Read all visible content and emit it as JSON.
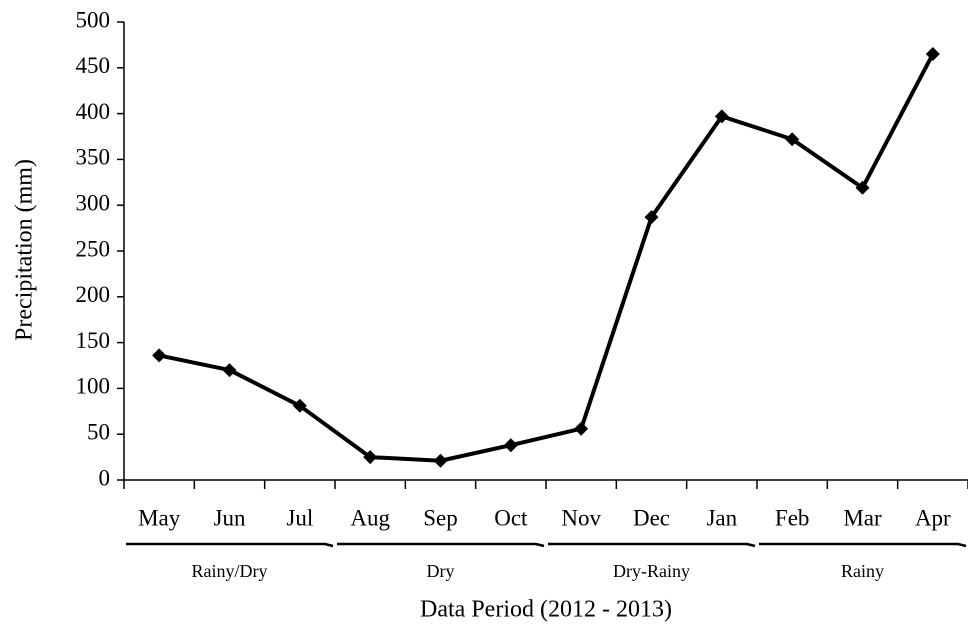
{
  "chart_data": {
    "type": "line",
    "categories": [
      "May",
      "Jun",
      "Jul",
      "Aug",
      "Sep",
      "Oct",
      "Nov",
      "Dec",
      "Jan",
      "Feb",
      "Mar",
      "Apr"
    ],
    "values": [
      136,
      120,
      81,
      25,
      21,
      38,
      56,
      287,
      397,
      372,
      319,
      465
    ],
    "color": "#000000",
    "ylim": [
      0,
      500
    ],
    "yticks": [
      0,
      50,
      100,
      150,
      200,
      250,
      300,
      350,
      400,
      450,
      500
    ],
    "y_label": "Precipitation (mm)",
    "x_label": "Data Period (2012 - 2013)",
    "groups": [
      {
        "label": "Rainy/Dry",
        "members": [
          "May",
          "Jun",
          "Jul"
        ]
      },
      {
        "label": "Dry",
        "members": [
          "Aug",
          "Sep",
          "Oct"
        ]
      },
      {
        "label": "Dry-Rainy",
        "members": [
          "Nov",
          "Dec",
          "Jan"
        ]
      },
      {
        "label": "Rainy",
        "members": [
          "Feb",
          "Mar",
          "Apr"
        ]
      }
    ]
  }
}
